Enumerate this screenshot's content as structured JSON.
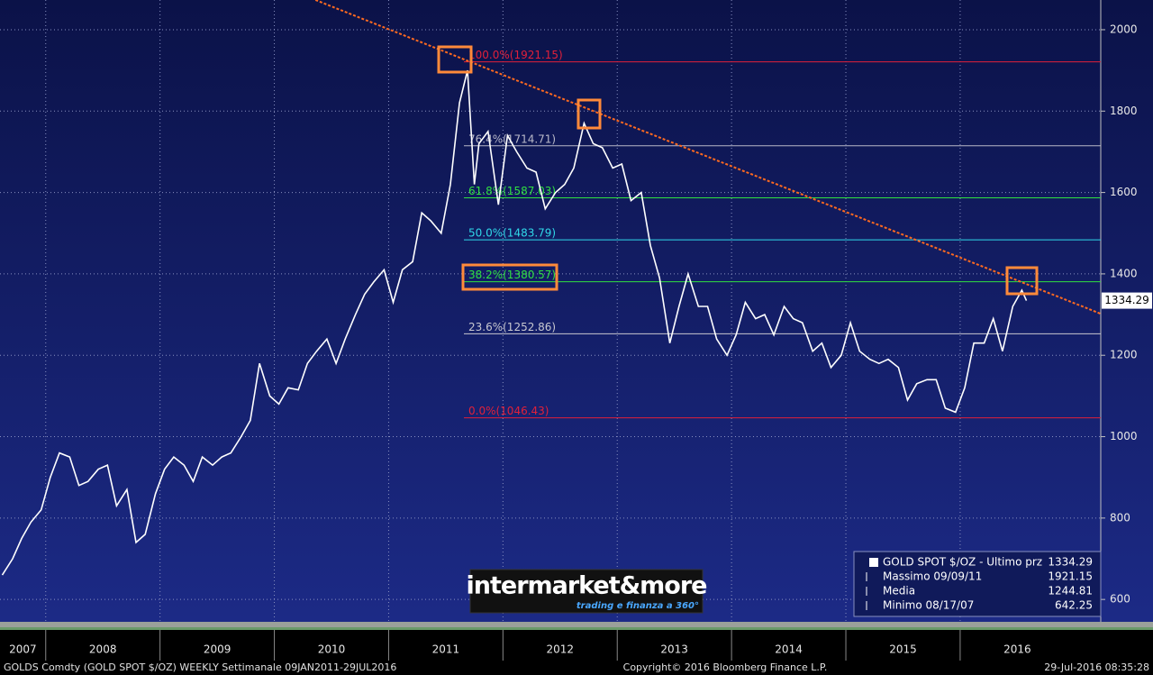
{
  "chart_data": {
    "type": "line",
    "xlim": [
      2007.6,
      2017.23
    ],
    "ylim": [
      545,
      2073
    ],
    "xticks": [
      2007,
      2008,
      2009,
      2010,
      2011,
      2012,
      2013,
      2014,
      2015,
      2016
    ],
    "yticks": [
      600,
      800,
      1000,
      1200,
      1400,
      1600,
      1800,
      2000
    ],
    "grid": true,
    "x": [
      2007.62,
      2007.71,
      2007.79,
      2007.87,
      2007.96,
      2008.04,
      2008.12,
      2008.21,
      2008.29,
      2008.37,
      2008.46,
      2008.54,
      2008.62,
      2008.71,
      2008.79,
      2008.87,
      2008.96,
      2009.04,
      2009.12,
      2009.21,
      2009.29,
      2009.37,
      2009.46,
      2009.54,
      2009.62,
      2009.71,
      2009.79,
      2009.87,
      2009.96,
      2010.04,
      2010.12,
      2010.21,
      2010.29,
      2010.37,
      2010.46,
      2010.54,
      2010.62,
      2010.71,
      2010.79,
      2010.87,
      2010.96,
      2011.04,
      2011.12,
      2011.21,
      2011.29,
      2011.37,
      2011.46,
      2011.54,
      2011.62,
      2011.69,
      2011.75,
      2011.79,
      2011.87,
      2011.96,
      2012.04,
      2012.12,
      2012.21,
      2012.29,
      2012.37,
      2012.46,
      2012.54,
      2012.62,
      2012.71,
      2012.79,
      2012.87,
      2012.96,
      2013.04,
      2013.12,
      2013.21,
      2013.29,
      2013.37,
      2013.46,
      2013.54,
      2013.62,
      2013.71,
      2013.79,
      2013.87,
      2013.96,
      2014.04,
      2014.12,
      2014.21,
      2014.29,
      2014.37,
      2014.46,
      2014.54,
      2014.62,
      2014.71,
      2014.79,
      2014.87,
      2014.96,
      2015.04,
      2015.12,
      2015.21,
      2015.29,
      2015.37,
      2015.46,
      2015.54,
      2015.62,
      2015.71,
      2015.79,
      2015.87,
      2015.96,
      2016.04,
      2016.12,
      2016.21,
      2016.29,
      2016.37,
      2016.46,
      2016.54,
      2016.58
    ],
    "series": [
      {
        "name": "GOLD SPOT $/OZ - Ultimo prz",
        "color": "#ffffff",
        "values": [
          660,
          700,
          750,
          790,
          820,
          900,
          960,
          950,
          880,
          890,
          920,
          930,
          830,
          870,
          740,
          760,
          860,
          920,
          950,
          930,
          890,
          950,
          930,
          950,
          960,
          1000,
          1040,
          1180,
          1100,
          1080,
          1120,
          1115,
          1180,
          1210,
          1240,
          1180,
          1240,
          1300,
          1350,
          1380,
          1410,
          1330,
          1410,
          1430,
          1550,
          1530,
          1500,
          1620,
          1820,
          1900,
          1620,
          1720,
          1750,
          1570,
          1740,
          1700,
          1660,
          1650,
          1560,
          1600,
          1620,
          1660,
          1770,
          1720,
          1710,
          1660,
          1670,
          1580,
          1600,
          1470,
          1390,
          1230,
          1320,
          1400,
          1320,
          1320,
          1240,
          1200,
          1250,
          1330,
          1290,
          1300,
          1250,
          1320,
          1290,
          1280,
          1210,
          1230,
          1170,
          1200,
          1280,
          1210,
          1190,
          1180,
          1190,
          1170,
          1090,
          1130,
          1140,
          1140,
          1070,
          1060,
          1120,
          1230,
          1230,
          1290,
          1210,
          1320,
          1360,
          1334.29
        ]
      }
    ],
    "last_value": 1334.29,
    "levels": [
      {
        "value": 1921.15,
        "label": "100.0%(1921.15)",
        "color": "#e0203a"
      },
      {
        "value": 1714.71,
        "label": "76.4%(1714.71)",
        "color": "#b8b8c8"
      },
      {
        "value": 1587.03,
        "label": "61.8%(1587.03)",
        "color": "#30e040"
      },
      {
        "value": 1483.79,
        "label": "50.0%(1483.79)",
        "color": "#30d8e8"
      },
      {
        "value": 1380.57,
        "label": "38.2%(1380.57)",
        "color": "#30e040"
      },
      {
        "value": 1252.86,
        "label": "23.6%(1252.86)",
        "color": "#c8c8d0"
      },
      {
        "value": 1046.43,
        "label": "0.0%(1046.43)",
        "color": "#e0203a"
      }
    ],
    "trendline": {
      "color": "#ff6a20",
      "x": [
        2010.36,
        2017.23
      ],
      "values": [
        2073,
        1302
      ]
    },
    "legend": {
      "stats": [
        {
          "label": "Massimo 09/09/11",
          "value": 1921.15
        },
        {
          "label": "Media",
          "value": 1244.81
        },
        {
          "label": "Minimo 08/17/07",
          "value": 642.25
        }
      ]
    },
    "logo": {
      "title": "intermarket&more",
      "subtitle": "trading e finanza a 360°"
    },
    "footer": {
      "left": "GOLDS Comdty (GOLD SPOT $/OZ) WEEKLY  Settimanale 09JAN2011-29JUL2016",
      "center": "Copyright© 2016 Bloomberg Finance L.P.",
      "right": "29-Jul-2016 08:35:28"
    }
  }
}
